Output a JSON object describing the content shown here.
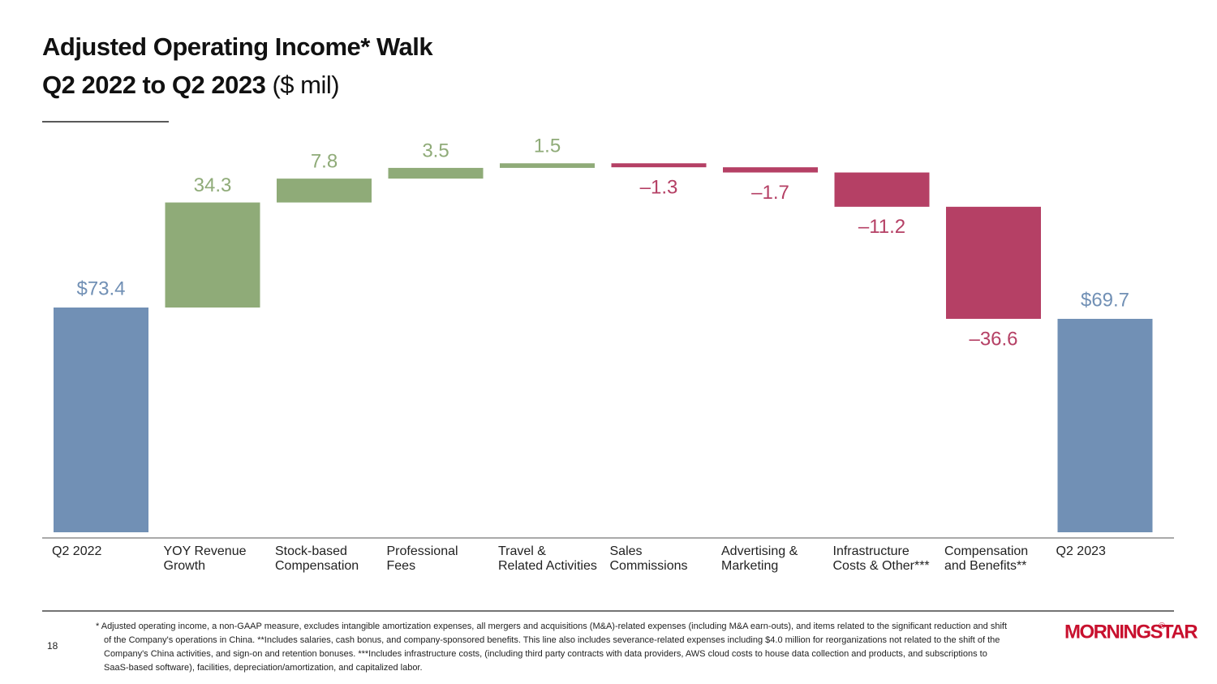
{
  "title": "Adjusted Operating Income* Walk",
  "subtitle_bold": "Q2 2022 to Q2 2023",
  "subtitle_unit": "($ mil)",
  "page_number": "18",
  "logo": "MORNINGSTAR",
  "logo_mark": "®",
  "footnote": "* Adjusted operating income, a non-GAAP measure, excludes intangible amortization expenses, all mergers and acquisitions (M&A)-related expenses (including M&A earn-outs), and items related to the significant reduction and shift of the Company's operations in China. **Includes salaries, cash bonus, and company-sponsored benefits. This line also includes severance-related expenses including $4.0 million for reorganizations not related to the shift of the Company's China activities, and sign-on and retention bonuses. ***Includes infrastructure costs, (including third party contracts with data providers, AWS cloud costs to house data collection and products, and subscriptions to SaaS-based software), facilities, depreciation/amortization, and capitalized labor.",
  "chart_data": {
    "type": "waterfall",
    "categories": [
      [
        "Q2 2022"
      ],
      [
        "YOY Revenue",
        "Growth"
      ],
      [
        "Stock-based",
        "Compensation"
      ],
      [
        "Professional",
        "Fees"
      ],
      [
        "Travel &",
        "Related Activities"
      ],
      [
        "Sales",
        "Commissions"
      ],
      [
        "Advertising &",
        "Marketing"
      ],
      [
        "Infrastructure",
        "Costs & Other***"
      ],
      [
        "Compensation",
        "and Benefits**"
      ],
      [
        "Q2 2023"
      ]
    ],
    "values": [
      73.4,
      34.3,
      7.8,
      3.5,
      1.5,
      -1.3,
      -1.7,
      -11.2,
      -36.6,
      69.7
    ],
    "value_labels": [
      "$73.4",
      "34.3",
      "7.8",
      "3.5",
      "1.5",
      "–1.3",
      "–1.7",
      "–11.2",
      "–36.6",
      "$69.7"
    ],
    "is_total": [
      true,
      false,
      false,
      false,
      false,
      false,
      false,
      false,
      false,
      true
    ],
    "colors": {
      "total": "#7190b5",
      "increase": "#8fab78",
      "decrease": "#b54065"
    },
    "ylim": [
      0,
      130
    ]
  }
}
